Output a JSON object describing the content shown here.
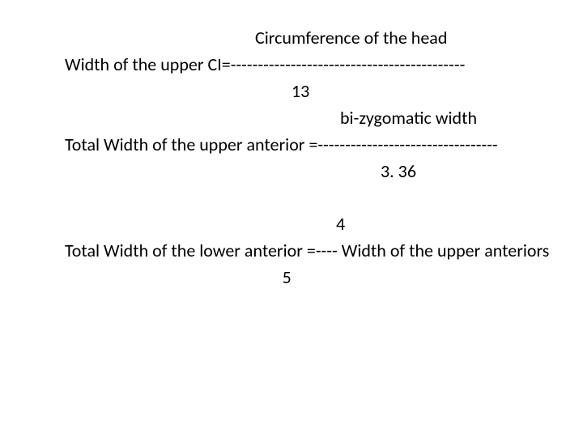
{
  "formula1": {
    "numerator": "Circumference of the head",
    "lhs": "Width of the upper CI=-------------------------------------------",
    "denominator": "13"
  },
  "formula2": {
    "numerator": "bi-zygomatic width",
    "lhs": "Total Width of the upper anterior =---------------------------------",
    "denominator": "3. 36"
  },
  "formula3": {
    "numerator": "4",
    "text": "Total Width of the lower anterior =---- Width of the upper anteriors",
    "denominator_pad": "                                                      5"
  }
}
